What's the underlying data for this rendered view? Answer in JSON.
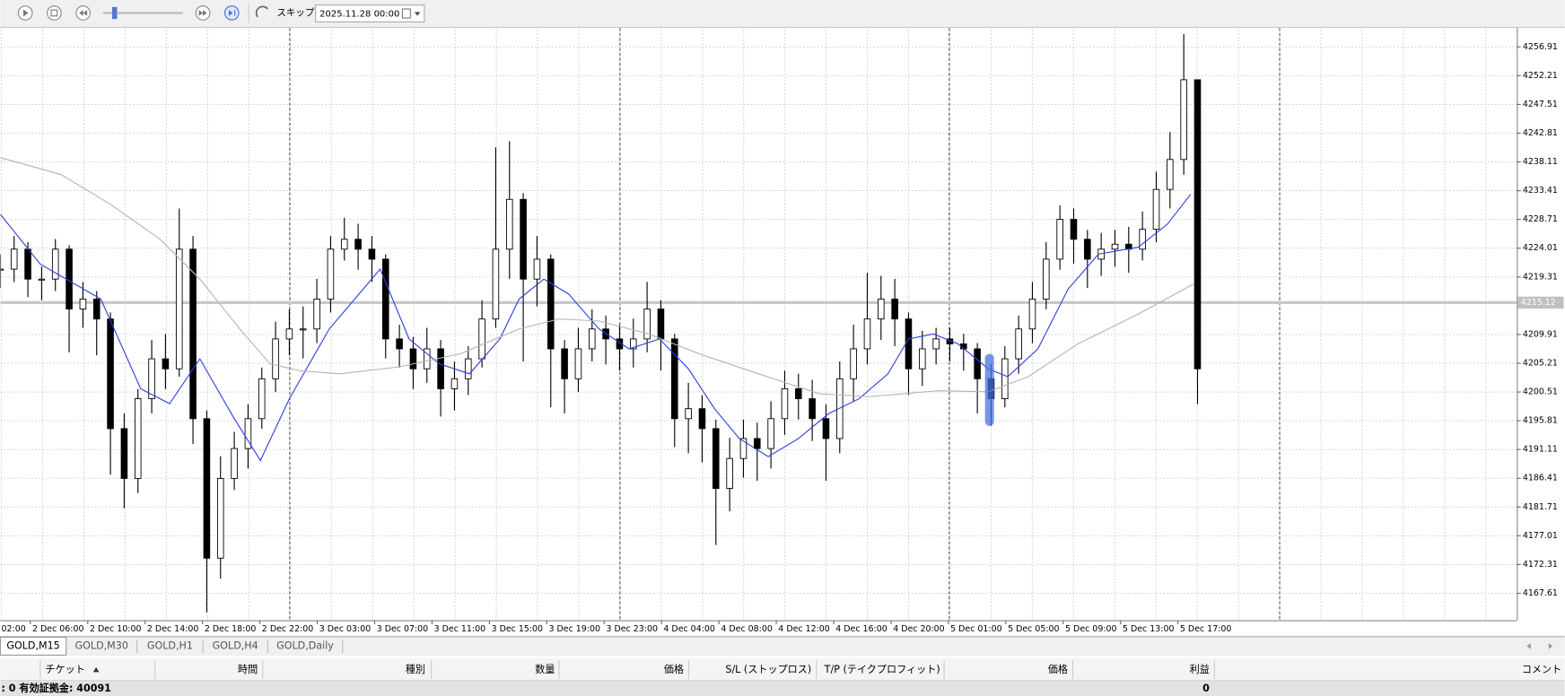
{
  "toolbar": {
    "skip": "スキップ",
    "date": "2025.11.28 00:00"
  },
  "chart_data": {
    "type": "candlestick",
    "candles": {
      "close": [
        4220.59,
        4223.85,
        4218.96,
        4218.96,
        4223.85,
        4214.07,
        4215.7,
        4212.44,
        4194.52,
        4186.38,
        4199.41,
        4205.93,
        4204.3,
        4223.85,
        4196.15,
        4173.35,
        4186.38,
        4191.27,
        4196.15,
        4202.67,
        4209.18,
        4210.81,
        4210.81,
        4215.7,
        4223.85,
        4225.47,
        4223.85,
        4222.22,
        4209.18,
        4207.56,
        4204.3,
        4207.56,
        4201.04,
        4202.67,
        4205.93,
        4212.44,
        4223.85,
        4231.99,
        4218.96,
        4222.22,
        4207.56,
        4202.67,
        4207.56,
        4210.81,
        4209.18,
        4207.56,
        4209.18,
        4214.07,
        4209.18,
        4196.15,
        4197.78,
        4194.52,
        4184.75,
        4189.64,
        4192.9,
        4191.27,
        4196.15,
        4201.04,
        4199.41,
        4196.15,
        4192.9,
        4202.67,
        4207.56,
        4212.44,
        4215.7,
        4212.44,
        4204.3,
        4207.56,
        4209.18,
        4208.37,
        4207.56,
        4202.67,
        4199.41,
        4205.93,
        4210.81,
        4215.7,
        4222.22,
        4228.73,
        4225.47,
        4222.22,
        4223.85,
        4224.66,
        4223.85,
        4227.1,
        4233.62,
        4238.51,
        4251.54,
        4204.3
      ],
      "high": [
        4223.0,
        4226.0,
        4225.0,
        4221.0,
        4225.5,
        4224.5,
        4218.5,
        4217.0,
        4213.5,
        4197.0,
        4201.0,
        4209.0,
        4210.0,
        4230.5,
        4226.0,
        4197.5,
        4190.0,
        4194.0,
        4198.5,
        4204.5,
        4212.0,
        4214.0,
        4214.5,
        4219.0,
        4226.0,
        4229.0,
        4228.0,
        4226.0,
        4223.0,
        4211.5,
        4209.5,
        4211.0,
        4209.0,
        4205.5,
        4208.0,
        4215.5,
        4240.5,
        4241.5,
        4233.0,
        4226.0,
        4223.0,
        4209.0,
        4211.0,
        4214.0,
        4213.0,
        4211.5,
        4212.5,
        4218.5,
        4215.5,
        4210.0,
        4202.0,
        4200.0,
        4196.0,
        4193.0,
        4196.0,
        4195.5,
        4199.0,
        4204.0,
        4203.5,
        4202.5,
        4198.5,
        4205.5,
        4211.5,
        4220.0,
        4219.5,
        4219.0,
        4213.5,
        4210.5,
        4211.0,
        4211.0,
        4210.0,
        4208.5,
        4205.0,
        4208.0,
        4213.0,
        4218.5,
        4225.0,
        4231.0,
        4230.5,
        4227.0,
        4226.5,
        4227.0,
        4227.5,
        4230.0,
        4236.5,
        4243.0,
        4259.0,
        4251.0
      ],
      "low": [
        4217.5,
        4218.5,
        4216.0,
        4215.5,
        4217.0,
        4207.0,
        4211.0,
        4206.5,
        4187.0,
        4181.5,
        4184.0,
        4197.0,
        4201.0,
        4203.0,
        4192.0,
        4164.5,
        4170.0,
        4184.5,
        4188.0,
        4194.5,
        4200.5,
        4206.5,
        4206.0,
        4208.5,
        4213.5,
        4222.0,
        4220.5,
        4218.5,
        4206.0,
        4204.5,
        4201.0,
        4202.0,
        4196.5,
        4197.5,
        4200.0,
        4204.5,
        4211.0,
        4219.0,
        4205.5,
        4214.5,
        4198.0,
        4197.0,
        4200.5,
        4205.5,
        4205.0,
        4204.0,
        4204.5,
        4207.0,
        4204.0,
        4191.5,
        4190.5,
        4189.0,
        4175.5,
        4181.0,
        4186.5,
        4186.0,
        4188.0,
        4193.5,
        4196.0,
        4192.5,
        4186.0,
        4190.5,
        4199.0,
        4205.0,
        4209.0,
        4208.0,
        4200.0,
        4201.5,
        4205.0,
        4205.5,
        4204.0,
        4197.0,
        4195.0,
        4198.0,
        4203.5,
        4208.5,
        4214.0,
        4220.5,
        4221.5,
        4217.5,
        4219.5,
        4221.0,
        4220.0,
        4222.0,
        4225.0,
        4230.5,
        4236.0,
        4198.5
      ]
    },
    "ma": [
      {
        "color": "#2a3fe0",
        "x": [
          0,
          2.9,
          7.3,
          10.2,
          12.3,
          14.5,
          17.0,
          18.9,
          21.0,
          23.9,
          27.6,
          29.7,
          31.9,
          34.1,
          36.3,
          37.7,
          39.5,
          41.3,
          43.5,
          45.7,
          47.9,
          50.0,
          51.9,
          53.7,
          55.8,
          58.0,
          60.2,
          62.4,
          64.5,
          66.0,
          67.8,
          69.6,
          71.8,
          73.2,
          75.4,
          77.6,
          79.8,
          82.7,
          84.8,
          86.5
        ],
        "values": [
          4229.55,
          4221.4,
          4215.7,
          4201.04,
          4198.6,
          4205.93,
          4196.15,
          4189.31,
          4199.41,
          4210.81,
          4220.59,
          4209.18,
          4205.11,
          4203.48,
          4209.18,
          4215.7,
          4218.96,
          4216.52,
          4210.81,
          4207.56,
          4209.18,
          4204.3,
          4197.78,
          4192.9,
          4189.96,
          4192.9,
          4196.97,
          4199.41,
          4203.48,
          4209.18,
          4209.99,
          4208.37,
          4204.3,
          4203.0,
          4207.56,
          4217.33,
          4223.03,
          4224.17,
          4227.92,
          4232.81
        ]
      },
      {
        "color": "#b4b4b4",
        "x": [
          0,
          4.4,
          8.0,
          11.6,
          14.5,
          17.4,
          19.6,
          21.8,
          24.7,
          29.0,
          33.4,
          37.7,
          40.6,
          43.5,
          47.1,
          50.8,
          55.1,
          59.5,
          63.1,
          68.2,
          71.8,
          74.7,
          78.3,
          82.7,
          86.7
        ],
        "values": [
          4238.83,
          4236.06,
          4231.18,
          4225.47,
          4218.96,
          4210.81,
          4205.11,
          4203.97,
          4203.48,
          4204.62,
          4206.74,
          4210.81,
          4212.44,
          4212.12,
          4210.0,
          4206.74,
          4203.48,
          4200.23,
          4199.74,
          4200.71,
          4200.55,
          4203.0,
          4208.37,
          4213.26,
          4218.15
        ]
      }
    ],
    "current_price": 4215.12,
    "separators": [
      21.03,
      45.03,
      68.96,
      92.97
    ],
    "xlim": [
      0,
      110.2
    ],
    "xticks": [
      {
        "value": -1.99,
        "label": "02:00"
      },
      {
        "value": 2.18,
        "label": "2 Dec 06:00"
      },
      {
        "value": 6.35,
        "label": "2 Dec 10:00"
      },
      {
        "value": 10.52,
        "label": "2 Dec 14:00"
      },
      {
        "value": 14.69,
        "label": "2 Dec 18:00"
      },
      {
        "value": 18.86,
        "label": "2 Dec 22:00"
      },
      {
        "value": 23.03,
        "label": "3 Dec 03:00"
      },
      {
        "value": 27.2,
        "label": "3 Dec 07:00"
      },
      {
        "value": 31.37,
        "label": "3 Dec 11:00"
      },
      {
        "value": 35.54,
        "label": "3 Dec 15:00"
      },
      {
        "value": 39.71,
        "label": "3 Dec 19:00"
      },
      {
        "value": 43.88,
        "label": "3 Dec 23:00"
      },
      {
        "value": 48.05,
        "label": "4 Dec 04:00"
      },
      {
        "value": 52.22,
        "label": "4 Dec 08:00"
      },
      {
        "value": 56.39,
        "label": "4 Dec 12:00"
      },
      {
        "value": 60.56,
        "label": "4 Dec 16:00"
      },
      {
        "value": 64.73,
        "label": "4 Dec 20:00"
      },
      {
        "value": 68.9,
        "label": "5 Dec 01:00"
      },
      {
        "value": 73.07,
        "label": "5 Dec 05:00"
      },
      {
        "value": 77.24,
        "label": "5 Dec 09:00"
      },
      {
        "value": 81.41,
        "label": "5 Dec 13:00"
      },
      {
        "value": 85.58,
        "label": "5 Dec 17:00"
      }
    ],
    "ylim": [
      4163.21,
      4260.01
    ],
    "yticks": [
      4256.91,
      4252.21,
      4247.51,
      4242.81,
      4238.11,
      4233.41,
      4228.71,
      4224.01,
      4219.31,
      4209.91,
      4205.21,
      4200.51,
      4195.81,
      4191.11,
      4186.41,
      4181.71,
      4177.01,
      4172.31,
      4167.61
    ],
    "grid": true
  },
  "tabs": [
    "GOLD,M15",
    "GOLD,M30",
    "GOLD,H1",
    "GOLD,H4",
    "GOLD,Daily"
  ],
  "table": {
    "headers": [
      "チケット",
      "時間",
      "種別",
      "数量",
      "価格",
      "S/L (ストップロス)",
      "T/P (テイクプロフィット)",
      "価格",
      "利益",
      "コメント"
    ]
  },
  "footer": {
    "summary": ": 0  有効証拠金: 40091",
    "profit": 0
  }
}
